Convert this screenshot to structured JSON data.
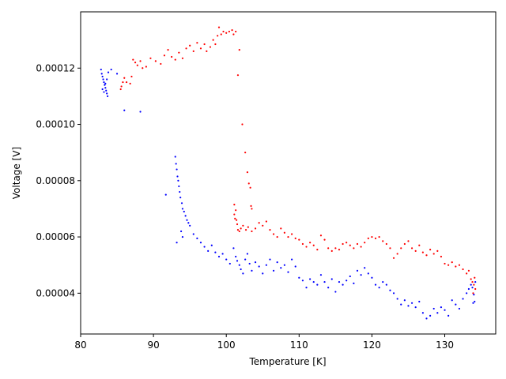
{
  "chart_data": {
    "type": "scatter",
    "xlabel": "Temperature [K]",
    "ylabel": "Voltage [V]",
    "xlim": [
      80,
      137
    ],
    "ylim": [
      2.55e-05,
      0.00014
    ],
    "x_ticks": [
      80,
      90,
      100,
      110,
      120,
      130
    ],
    "y_ticks": [
      4e-05,
      6e-05,
      8e-05,
      0.0001,
      0.00012
    ],
    "y_tick_labels": [
      "0.00004",
      "0.00006",
      "0.00008",
      "0.00010",
      "0.00012"
    ],
    "grid": false,
    "series": [
      {
        "color": "#ff0000",
        "points": [
          [
            85.5,
            0.0001125
          ],
          [
            85.6,
            0.0001135
          ],
          [
            85.8,
            0.000115
          ],
          [
            86.0,
            0.0001165
          ],
          [
            86.3,
            0.000115
          ],
          [
            86.8,
            0.0001145
          ],
          [
            87.0,
            0.000117
          ],
          [
            87.2,
            0.000123
          ],
          [
            87.5,
            0.000122
          ],
          [
            87.8,
            0.000121
          ],
          [
            88.2,
            0.0001225
          ],
          [
            88.5,
            0.00012
          ],
          [
            89.0,
            0.0001205
          ],
          [
            89.6,
            0.0001235
          ],
          [
            90.3,
            0.0001225
          ],
          [
            91.0,
            0.0001215
          ],
          [
            91.5,
            0.0001245
          ],
          [
            92.0,
            0.0001265
          ],
          [
            92.5,
            0.000124
          ],
          [
            93.0,
            0.000123
          ],
          [
            93.5,
            0.0001255
          ],
          [
            94.0,
            0.0001235
          ],
          [
            94.5,
            0.000127
          ],
          [
            95.0,
            0.000128
          ],
          [
            95.5,
            0.000126
          ],
          [
            96.0,
            0.000129
          ],
          [
            96.5,
            0.000127
          ],
          [
            97.0,
            0.0001285
          ],
          [
            97.3,
            0.000126
          ],
          [
            97.8,
            0.0001275
          ],
          [
            98.2,
            0.00013
          ],
          [
            98.5,
            0.0001285
          ],
          [
            98.8,
            0.0001315
          ],
          [
            99.0,
            0.0001345
          ],
          [
            99.3,
            0.000132
          ],
          [
            99.6,
            0.000133
          ],
          [
            100.0,
            0.0001325
          ],
          [
            100.4,
            0.000133
          ],
          [
            100.8,
            0.0001335
          ],
          [
            101.0,
            0.000132
          ],
          [
            101.3,
            0.000133
          ],
          [
            101.6,
            0.0001175
          ],
          [
            101.8,
            0.0001265
          ],
          [
            102.2,
            0.0001
          ],
          [
            102.6,
            9e-05
          ],
          [
            102.9,
            8.3e-05
          ],
          [
            103.1,
            7.9e-05
          ],
          [
            103.3,
            7.75e-05
          ],
          [
            103.4,
            7.1e-05
          ],
          [
            103.5,
            7e-05
          ],
          [
            101.1,
            7.15e-05
          ],
          [
            101.1,
            6.8e-05
          ],
          [
            101.2,
            6.65e-05
          ],
          [
            101.3,
            6.95e-05
          ],
          [
            101.4,
            6.6e-05
          ],
          [
            101.5,
            6.45e-05
          ],
          [
            101.6,
            6.25e-05
          ],
          [
            101.8,
            6.2e-05
          ],
          [
            102.0,
            6.3e-05
          ],
          [
            102.3,
            6.4e-05
          ],
          [
            102.7,
            6.25e-05
          ],
          [
            103.0,
            6.35e-05
          ],
          [
            103.5,
            6.2e-05
          ],
          [
            104.0,
            6.3e-05
          ],
          [
            104.5,
            6.5e-05
          ],
          [
            105.0,
            6.4e-05
          ],
          [
            105.5,
            6.55e-05
          ],
          [
            106.0,
            6.25e-05
          ],
          [
            106.5,
            6.1e-05
          ],
          [
            107.0,
            6e-05
          ],
          [
            107.5,
            6.3e-05
          ],
          [
            108.0,
            6.15e-05
          ],
          [
            108.5,
            6e-05
          ],
          [
            109.0,
            6.1e-05
          ],
          [
            109.5,
            5.95e-05
          ],
          [
            110.0,
            5.9e-05
          ],
          [
            110.5,
            5.75e-05
          ],
          [
            111.0,
            5.65e-05
          ],
          [
            111.5,
            5.8e-05
          ],
          [
            112.0,
            5.7e-05
          ],
          [
            112.5,
            5.55e-05
          ],
          [
            113.0,
            6.05e-05
          ],
          [
            113.5,
            5.9e-05
          ],
          [
            114.0,
            5.6e-05
          ],
          [
            114.5,
            5.5e-05
          ],
          [
            115.0,
            5.6e-05
          ],
          [
            115.5,
            5.55e-05
          ],
          [
            116.0,
            5.75e-05
          ],
          [
            116.5,
            5.8e-05
          ],
          [
            117.0,
            5.7e-05
          ],
          [
            117.5,
            5.6e-05
          ],
          [
            118.0,
            5.75e-05
          ],
          [
            118.5,
            5.65e-05
          ],
          [
            119.0,
            5.8e-05
          ],
          [
            119.5,
            5.95e-05
          ],
          [
            120.0,
            6e-05
          ],
          [
            120.5,
            5.95e-05
          ],
          [
            121.0,
            6e-05
          ],
          [
            121.5,
            5.85e-05
          ],
          [
            122.0,
            5.75e-05
          ],
          [
            122.5,
            5.6e-05
          ],
          [
            123.0,
            5.25e-05
          ],
          [
            123.5,
            5.4e-05
          ],
          [
            124.0,
            5.6e-05
          ],
          [
            124.5,
            5.75e-05
          ],
          [
            125.0,
            5.85e-05
          ],
          [
            125.5,
            5.6e-05
          ],
          [
            126.0,
            5.5e-05
          ],
          [
            126.5,
            5.7e-05
          ],
          [
            127.0,
            5.45e-05
          ],
          [
            127.5,
            5.35e-05
          ],
          [
            128.0,
            5.55e-05
          ],
          [
            128.5,
            5.4e-05
          ],
          [
            129.0,
            5.5e-05
          ],
          [
            129.5,
            5.3e-05
          ],
          [
            130.0,
            5.05e-05
          ],
          [
            130.5,
            5e-05
          ],
          [
            131.0,
            5.1e-05
          ],
          [
            131.5,
            4.95e-05
          ],
          [
            132.0,
            5e-05
          ],
          [
            132.5,
            4.85e-05
          ],
          [
            133.0,
            4.7e-05
          ],
          [
            133.3,
            4.8e-05
          ],
          [
            133.6,
            4.5e-05
          ],
          [
            133.8,
            4.4e-05
          ],
          [
            134.0,
            4.3e-05
          ],
          [
            134.1,
            4.55e-05
          ],
          [
            134.2,
            4.15e-05
          ],
          [
            133.9,
            4e-05
          ]
        ]
      },
      {
        "color": "#0000ff",
        "points": [
          [
            82.8,
            0.0001195
          ],
          [
            82.9,
            0.000118
          ],
          [
            83.0,
            0.000117
          ],
          [
            83.1,
            0.000116
          ],
          [
            83.2,
            0.000115
          ],
          [
            83.3,
            0.000114
          ],
          [
            83.4,
            0.000113
          ],
          [
            83.5,
            0.000112
          ],
          [
            83.6,
            0.000111
          ],
          [
            83.7,
            0.00011
          ],
          [
            83.0,
            0.0001125
          ],
          [
            83.2,
            0.0001115
          ],
          [
            83.4,
            0.0001145
          ],
          [
            83.6,
            0.000116
          ],
          [
            83.8,
            0.0001185
          ],
          [
            84.2,
            0.0001195
          ],
          [
            85.0,
            0.000118
          ],
          [
            86.0,
            0.000105
          ],
          [
            88.2,
            0.0001045
          ],
          [
            91.7,
            7.5e-05
          ],
          [
            93.0,
            8.85e-05
          ],
          [
            93.1,
            8.6e-05
          ],
          [
            93.2,
            8.4e-05
          ],
          [
            93.3,
            8.15e-05
          ],
          [
            93.4,
            8e-05
          ],
          [
            93.5,
            7.8e-05
          ],
          [
            93.6,
            7.6e-05
          ],
          [
            93.7,
            7.4e-05
          ],
          [
            93.9,
            7.2e-05
          ],
          [
            94.0,
            7e-05
          ],
          [
            94.2,
            6.9e-05
          ],
          [
            94.4,
            6.75e-05
          ],
          [
            94.6,
            6.6e-05
          ],
          [
            94.8,
            6.5e-05
          ],
          [
            95.0,
            6.4e-05
          ],
          [
            93.8,
            6.2e-05
          ],
          [
            94.0,
            6e-05
          ],
          [
            93.2,
            5.8e-05
          ],
          [
            95.5,
            6.1e-05
          ],
          [
            96.0,
            5.95e-05
          ],
          [
            96.5,
            5.8e-05
          ],
          [
            97.0,
            5.65e-05
          ],
          [
            97.5,
            5.5e-05
          ],
          [
            98.0,
            5.7e-05
          ],
          [
            98.5,
            5.45e-05
          ],
          [
            99.0,
            5.3e-05
          ],
          [
            99.5,
            5.4e-05
          ],
          [
            100.0,
            5.2e-05
          ],
          [
            100.5,
            5.05e-05
          ],
          [
            101.0,
            5.6e-05
          ],
          [
            101.3,
            5.3e-05
          ],
          [
            101.5,
            5.15e-05
          ],
          [
            101.8,
            5e-05
          ],
          [
            102.0,
            4.85e-05
          ],
          [
            102.3,
            4.7e-05
          ],
          [
            102.6,
            5.2e-05
          ],
          [
            102.9,
            5.4e-05
          ],
          [
            103.2,
            5.05e-05
          ],
          [
            103.5,
            4.8e-05
          ],
          [
            104.0,
            5.1e-05
          ],
          [
            104.5,
            4.95e-05
          ],
          [
            105.0,
            4.7e-05
          ],
          [
            105.5,
            5e-05
          ],
          [
            106.0,
            5.2e-05
          ],
          [
            106.5,
            4.8e-05
          ],
          [
            107.0,
            5.1e-05
          ],
          [
            107.5,
            4.9e-05
          ],
          [
            108.0,
            5e-05
          ],
          [
            108.5,
            4.75e-05
          ],
          [
            109.0,
            5.2e-05
          ],
          [
            109.5,
            4.95e-05
          ],
          [
            110.0,
            4.55e-05
          ],
          [
            110.5,
            4.45e-05
          ],
          [
            111.0,
            4.2e-05
          ],
          [
            111.5,
            4.5e-05
          ],
          [
            112.0,
            4.4e-05
          ],
          [
            112.5,
            4.3e-05
          ],
          [
            113.0,
            4.65e-05
          ],
          [
            113.5,
            4.4e-05
          ],
          [
            114.0,
            4.2e-05
          ],
          [
            114.5,
            4.5e-05
          ],
          [
            115.0,
            4.05e-05
          ],
          [
            115.5,
            4.4e-05
          ],
          [
            116.0,
            4.3e-05
          ],
          [
            116.5,
            4.45e-05
          ],
          [
            117.0,
            4.6e-05
          ],
          [
            117.5,
            4.35e-05
          ],
          [
            118.0,
            4.8e-05
          ],
          [
            118.5,
            4.65e-05
          ],
          [
            119.0,
            4.9e-05
          ],
          [
            119.5,
            4.7e-05
          ],
          [
            120.0,
            4.55e-05
          ],
          [
            120.5,
            4.3e-05
          ],
          [
            121.0,
            4.2e-05
          ],
          [
            121.5,
            4.4e-05
          ],
          [
            122.0,
            4.3e-05
          ],
          [
            122.5,
            4.1e-05
          ],
          [
            123.0,
            4e-05
          ],
          [
            123.5,
            3.8e-05
          ],
          [
            124.0,
            3.6e-05
          ],
          [
            124.5,
            3.75e-05
          ],
          [
            125.0,
            3.55e-05
          ],
          [
            125.5,
            3.65e-05
          ],
          [
            126.0,
            3.5e-05
          ],
          [
            126.5,
            3.7e-05
          ],
          [
            127.0,
            3.3e-05
          ],
          [
            127.5,
            3.1e-05
          ],
          [
            128.0,
            3.2e-05
          ],
          [
            128.5,
            3.45e-05
          ],
          [
            129.0,
            3.3e-05
          ],
          [
            129.5,
            3.5e-05
          ],
          [
            130.0,
            3.4e-05
          ],
          [
            130.5,
            3.2e-05
          ],
          [
            131.0,
            3.75e-05
          ],
          [
            131.5,
            3.6e-05
          ],
          [
            132.0,
            3.45e-05
          ],
          [
            132.5,
            3.8e-05
          ],
          [
            133.0,
            4e-05
          ],
          [
            133.3,
            4.15e-05
          ],
          [
            133.6,
            4.3e-05
          ],
          [
            133.8,
            4.2e-05
          ],
          [
            134.0,
            3.95e-05
          ],
          [
            134.1,
            3.7e-05
          ],
          [
            133.9,
            3.65e-05
          ],
          [
            134.2,
            4.4e-05
          ]
        ]
      }
    ]
  }
}
